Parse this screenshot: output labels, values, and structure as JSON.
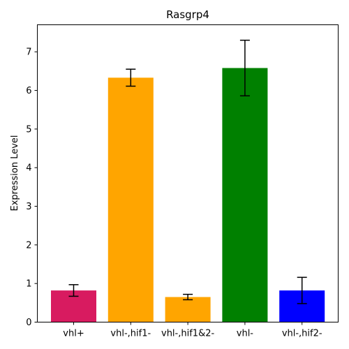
{
  "chart_data": {
    "type": "bar",
    "title": "Rasgrp4",
    "xlabel": "",
    "ylabel": "Expression Level",
    "categories": [
      "vhl+",
      "vhl-,hif1-",
      "vhl-,hif1&2-",
      "vhl-",
      "vhl-,hif2-"
    ],
    "values": [
      0.82,
      6.33,
      0.65,
      6.58,
      0.82
    ],
    "errors": [
      0.15,
      0.22,
      0.07,
      0.72,
      0.34
    ],
    "colors": [
      "#d81b60",
      "#ffa500",
      "#ffa500",
      "#008000",
      "#0000ff"
    ],
    "ylim": [
      0,
      7.7
    ],
    "yticks": [
      0,
      1,
      2,
      3,
      4,
      5,
      6,
      7
    ],
    "grid": false,
    "legend": "none"
  }
}
